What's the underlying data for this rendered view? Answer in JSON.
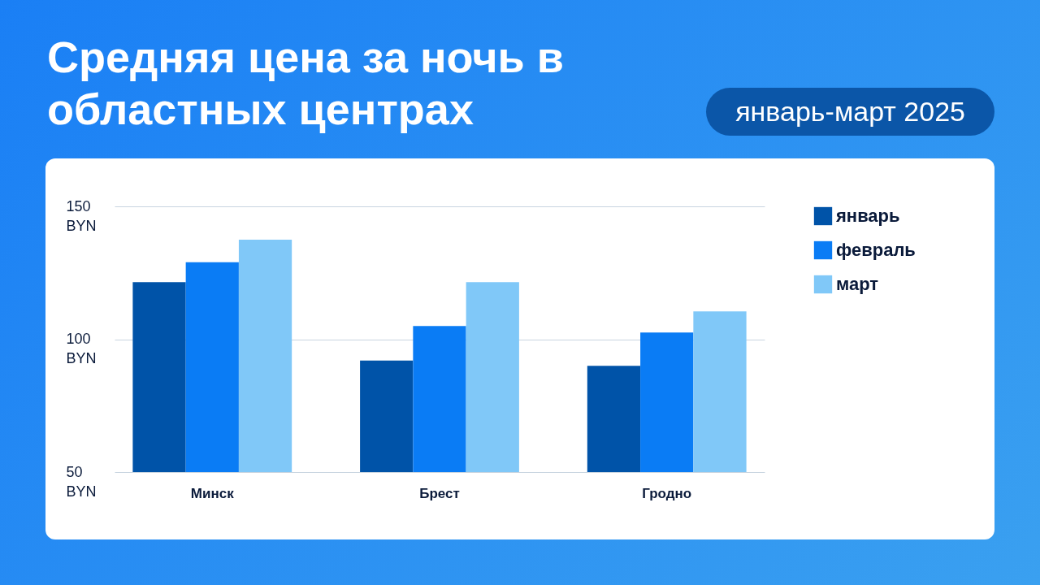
{
  "chart_data": {
    "type": "bar",
    "title": "Средняя цена за ночь в областных центрах",
    "subtitle": "январь-март 2025",
    "categories": [
      "Минск",
      "Брест",
      "Гродно"
    ],
    "series": [
      {
        "name": "январь",
        "color": "#0053a8",
        "values": [
          121.5,
          92,
          90
        ]
      },
      {
        "name": "февраль",
        "color": "#0a7cf5",
        "values": [
          129,
          105,
          102.5
        ]
      },
      {
        "name": "март",
        "color": "#80c8f8",
        "values": [
          137.5,
          121.5,
          110.5
        ]
      }
    ],
    "ylim": [
      50,
      150
    ],
    "yticks": [
      {
        "value": 50,
        "label": "50 BYN"
      },
      {
        "value": 100,
        "label": "100 BYN"
      },
      {
        "value": 150,
        "label": "150 BYN"
      }
    ],
    "grid": "y",
    "legend": "right"
  }
}
